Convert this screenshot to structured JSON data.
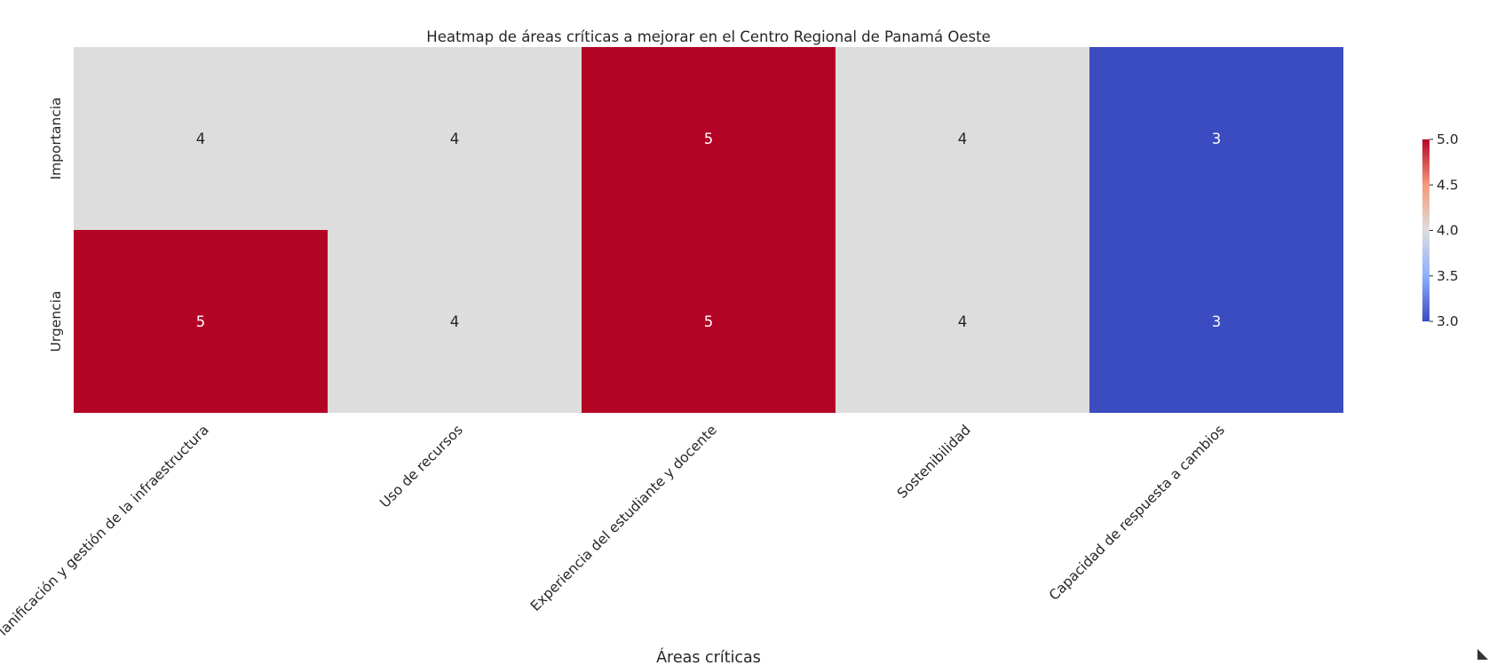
{
  "chart_data": {
    "type": "heatmap",
    "title": "Heatmap de áreas críticas a mejorar en el Centro Regional de Panamá Oeste",
    "xlabel": "Áreas críticas",
    "ylabel": "",
    "columns": [
      "Planificación y gestión de la infraestructura",
      "Uso de recursos",
      "Experiencia del estudiante y docente",
      "Sostenibilidad",
      "Capacidad de respuesta a cambios"
    ],
    "rows": [
      "Importancia",
      "Urgencia"
    ],
    "values": [
      [
        4,
        4,
        5,
        4,
        3
      ],
      [
        5,
        4,
        5,
        4,
        3
      ]
    ],
    "colormap": "coolwarm",
    "color_range": [
      3.0,
      5.0
    ],
    "colorbar_ticks": [
      "3.0",
      "3.5",
      "4.0",
      "4.5",
      "5.0"
    ],
    "colors": {
      "low": "#3b4cc0",
      "mid": "#dddddd",
      "high": "#b40426"
    },
    "grid": false,
    "legend": "colorbar-right"
  }
}
